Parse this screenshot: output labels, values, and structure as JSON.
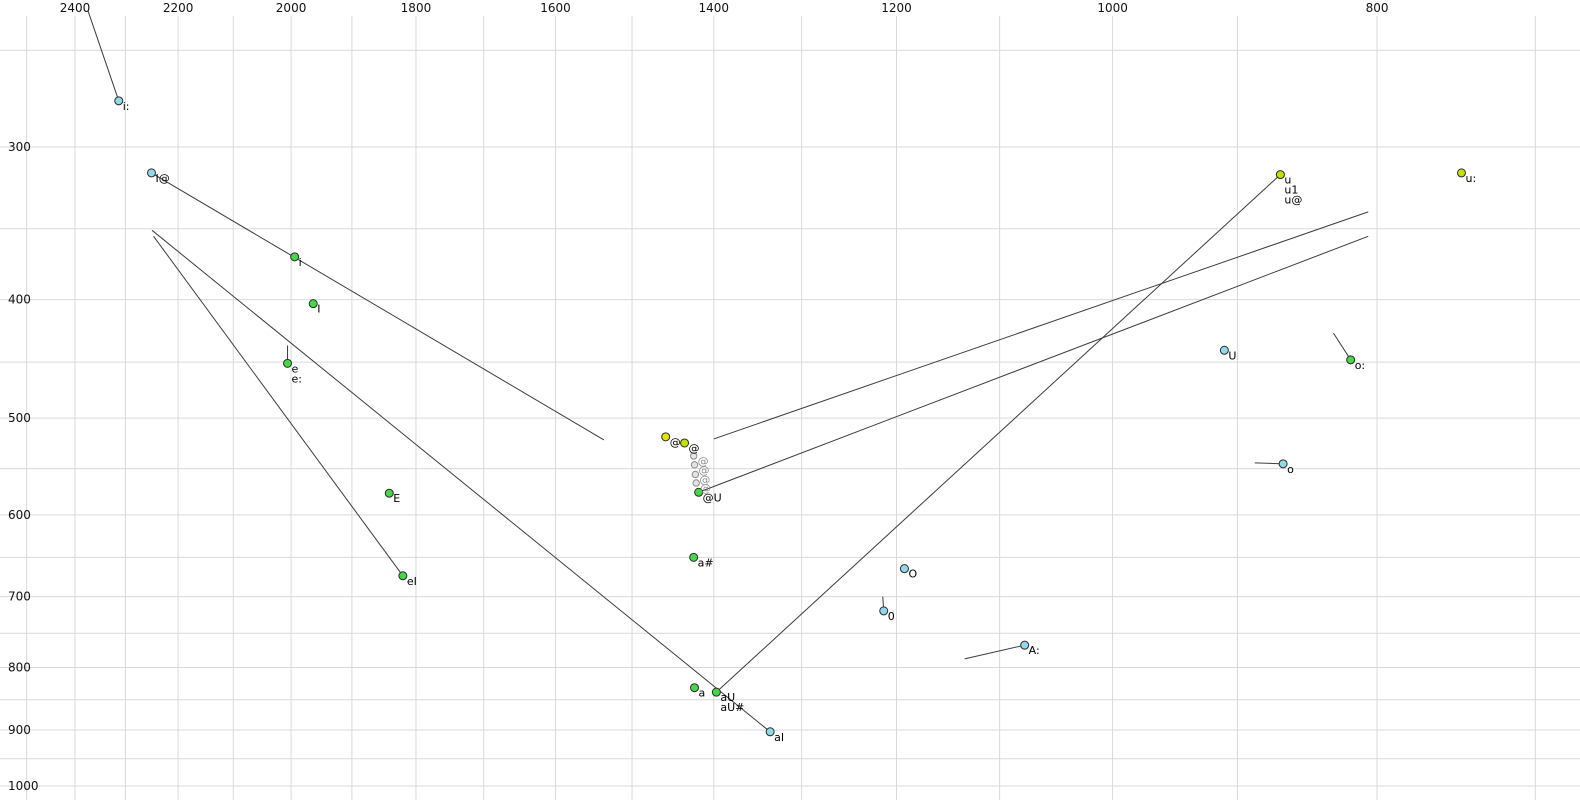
{
  "chart_data": {
    "type": "scatter",
    "title": "",
    "description": "Vowel formant plot (F2 horizontal reversed log scale, F1 vertical inverted log scale) with SAMPA vowel labels and diphthong trajectory lines",
    "x_axis": {
      "tick_labels": [
        2400,
        2200,
        2000,
        1800,
        1600,
        1400,
        1200,
        1000,
        800
      ],
      "scale": "log",
      "direction": "reversed",
      "grid_min": 700,
      "grid_max": 2500,
      "grid_step": 100
    },
    "y_axis": {
      "tick_labels": [
        300,
        400,
        500,
        600,
        700,
        800,
        900,
        1000
      ],
      "scale": "log",
      "direction": "inverted",
      "grid_min": 250,
      "grid_max": 1000,
      "grid_step": 50
    },
    "points": [
      {
        "labels": [
          "i:"
        ],
        "f2": 2313,
        "f1": 275,
        "color": "blue"
      },
      {
        "labels": [
          "I@"
        ],
        "f2": 2250,
        "f1": 315,
        "color": "blue"
      },
      {
        "labels": [
          "i"
        ],
        "f2": 1994,
        "f1": 369,
        "color": "green"
      },
      {
        "labels": [
          "I"
        ],
        "f2": 1963,
        "f1": 403,
        "color": "green"
      },
      {
        "labels": [
          "e",
          "e:"
        ],
        "f2": 2006,
        "f1": 451,
        "color": "green"
      },
      {
        "labels": [
          "E"
        ],
        "f2": 1841,
        "f1": 576,
        "color": "green"
      },
      {
        "labels": [
          "eI"
        ],
        "f2": 1820,
        "f1": 673,
        "color": "green"
      },
      {
        "labels": [
          "@"
        ],
        "f2": 1458,
        "f1": 518,
        "color": "yellow"
      },
      {
        "labels": [
          "@"
        ],
        "f2": 1435,
        "f1": 524,
        "color": "yellowgreen"
      },
      {
        "labels": [
          "@"
        ],
        "f2": 1424,
        "f1": 537,
        "color": "gray"
      },
      {
        "labels": [
          "@"
        ],
        "f2": 1423,
        "f1": 546,
        "color": "gray"
      },
      {
        "labels": [
          "@"
        ],
        "f2": 1422,
        "f1": 556,
        "color": "gray"
      },
      {
        "labels": [
          "@"
        ],
        "f2": 1421,
        "f1": 565,
        "color": "gray"
      },
      {
        "labels": [
          "@U"
        ],
        "f2": 1418,
        "f1": 575,
        "color": "green"
      },
      {
        "labels": [
          "a#"
        ],
        "f2": 1424,
        "f1": 650,
        "color": "green"
      },
      {
        "labels": [
          "a"
        ],
        "f2": 1423,
        "f1": 831,
        "color": "green"
      },
      {
        "labels": [
          "aU",
          "aU#"
        ],
        "f2": 1397,
        "f1": 838,
        "color": "green"
      },
      {
        "labels": [
          "aI"
        ],
        "f2": 1335,
        "f1": 903,
        "color": "blue"
      },
      {
        "labels": [
          "0"
        ],
        "f2": 1213,
        "f1": 719,
        "color": "blue"
      },
      {
        "labels": [
          "O"
        ],
        "f2": 1192,
        "f1": 664,
        "color": "blue"
      },
      {
        "labels": [
          "A:"
        ],
        "f2": 1077,
        "f1": 767,
        "color": "blue"
      },
      {
        "labels": [
          "U"
        ],
        "f2": 910,
        "f1": 440,
        "color": "blue"
      },
      {
        "labels": [
          "o"
        ],
        "f2": 866,
        "f1": 545,
        "color": "blue"
      },
      {
        "labels": [
          "o:"
        ],
        "f2": 818,
        "f1": 448,
        "color": "green"
      },
      {
        "labels": [
          "u",
          "u1",
          "u@"
        ],
        "f2": 868,
        "f1": 316,
        "color": "yellowgreen"
      },
      {
        "labels": [
          "u:"
        ],
        "f2": 745,
        "f1": 315,
        "color": "yellowgreen"
      }
    ],
    "trajectories": [
      {
        "from": [
          2374,
          232
        ],
        "to": [
          2313,
          275
        ]
      },
      {
        "from": [
          2250,
          315
        ],
        "to": [
          1536,
          521
        ]
      },
      {
        "from": [
          2246,
          355
        ],
        "to": [
          1820,
          673
        ]
      },
      {
        "from": [
          2249,
          351
        ],
        "to": [
          1335,
          903
        ]
      },
      {
        "from": [
          1397,
          838
        ],
        "to": [
          868,
          316
        ]
      },
      {
        "from": [
          1418,
          575
        ],
        "to": [
          806,
          355
        ]
      },
      {
        "from": [
          1400,
          520
        ],
        "to": [
          806,
          339
        ]
      },
      {
        "from": [
          2006,
          436
        ],
        "to": [
          2006,
          451
        ]
      },
      {
        "from": [
          1214,
          700
        ],
        "to": [
          1213,
          719
        ]
      },
      {
        "from": [
          1133,
          787
        ],
        "to": [
          1077,
          767
        ]
      },
      {
        "from": [
          887,
          544
        ],
        "to": [
          866,
          545
        ]
      },
      {
        "from": [
          830,
          426
        ],
        "to": [
          818,
          448
        ]
      }
    ],
    "colors": {
      "blue": "#92d7ea",
      "green": "#44d944",
      "yellow": "#e5e500",
      "yellowgreen": "#c4e000",
      "gray": "#e4e4e4",
      "gray_label": "#8f8f8f",
      "grid": "#d9d9d9",
      "line": "#3c3c3c",
      "tick_text": "#111111",
      "point_stroke": "#2b2b2b",
      "gray_point_stroke": "#8a8a8a",
      "label_text": "#000000"
    }
  }
}
